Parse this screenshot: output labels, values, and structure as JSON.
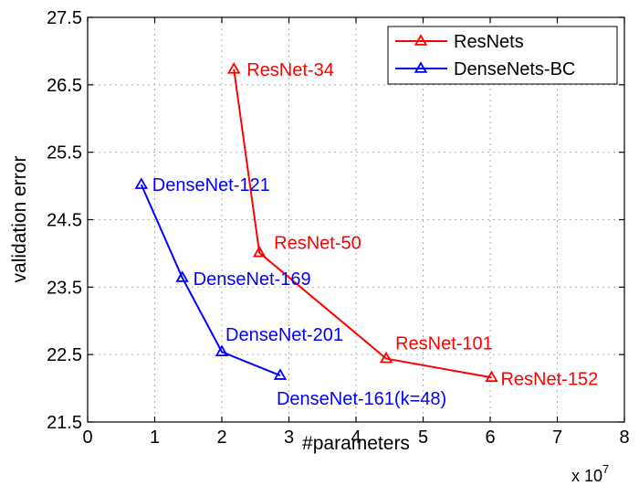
{
  "chart_data": {
    "type": "line",
    "xlabel": "#parameters",
    "ylabel": "validation error",
    "x_multiplier_label": "x 10",
    "x_multiplier_exponent": "7",
    "xlim": [
      0,
      8
    ],
    "ylim": [
      21.5,
      27.5
    ],
    "x_ticks": [
      "0",
      "1",
      "2",
      "3",
      "4",
      "5",
      "6",
      "7",
      "8"
    ],
    "y_ticks": [
      "21.5",
      "22.5",
      "23.5",
      "24.5",
      "25.5",
      "26.5",
      "27.5"
    ],
    "grid": true,
    "legend_position": "top-right",
    "series": [
      {
        "name": "ResNets",
        "color": "#ff0000",
        "marker": "triangle",
        "points": [
          {
            "x": 2.18,
            "y": 26.73,
            "label": "ResNet-34"
          },
          {
            "x": 2.56,
            "y": 24.01,
            "label": "ResNet-50"
          },
          {
            "x": 4.45,
            "y": 22.44,
            "label": "ResNet-101"
          },
          {
            "x": 6.02,
            "y": 22.16,
            "label": "ResNet-152"
          }
        ]
      },
      {
        "name": "DenseNets-BC",
        "color": "#0000ff",
        "marker": "triangle",
        "points": [
          {
            "x": 0.8,
            "y": 25.02,
            "label": "DenseNet-121"
          },
          {
            "x": 1.41,
            "y": 23.64,
            "label": "DenseNet-169"
          },
          {
            "x": 2.0,
            "y": 22.54,
            "label": "DenseNet-201"
          },
          {
            "x": 2.87,
            "y": 22.19,
            "label": "DenseNet-161(k=48)"
          }
        ]
      }
    ]
  }
}
